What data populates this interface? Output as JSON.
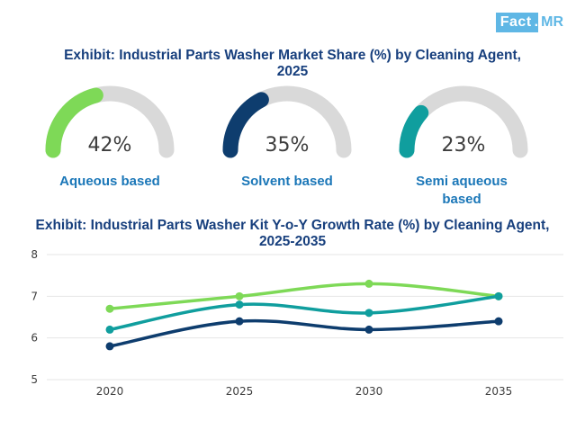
{
  "brand": {
    "name": "Fact",
    "dot": ".",
    "suffix": "MR"
  },
  "gauge_section": {
    "title_line1": "Exhibit: Industrial Parts Washer Market Share (%) by Cleaning Agent,",
    "title_line2": "2025",
    "gauges": [
      {
        "label_lines": [
          "Aqueous based"
        ],
        "value": 42,
        "value_text": "42%",
        "color": "#7ed957"
      },
      {
        "label_lines": [
          "Solvent based"
        ],
        "value": 35,
        "value_text": "35%",
        "color": "#0e3d6e"
      },
      {
        "label_lines": [
          "Semi aqueous",
          "based"
        ],
        "value": 23,
        "value_text": "23%",
        "color": "#109e9e"
      }
    ],
    "track_color": "#d9d9d9"
  },
  "line_section": {
    "title_line1": "Exhibit: Industrial Parts Washer Kit Y-o-Y Growth Rate (%) by Cleaning Agent,",
    "title_line2": "2025-2035"
  },
  "chart_data": {
    "type": "line",
    "title": "Exhibit: Industrial Parts Washer Kit Y-o-Y Growth Rate (%) by Cleaning Agent, 2025-2035",
    "x": [
      "2020",
      "2025",
      "2030",
      "2035"
    ],
    "ylim": [
      5,
      8
    ],
    "yticks": [
      "5",
      "6",
      "7",
      "8"
    ],
    "xlabel": "",
    "ylabel": "",
    "grid": true,
    "series": [
      {
        "name": "Aqueous based",
        "color": "#7ed957",
        "values": [
          6.7,
          7.0,
          7.3,
          7.0
        ]
      },
      {
        "name": "Semi aqueous based",
        "color": "#109e9e",
        "values": [
          6.2,
          6.8,
          6.6,
          7.0
        ]
      },
      {
        "name": "Solvent based",
        "color": "#0e3d6e",
        "values": [
          5.8,
          6.4,
          6.2,
          6.4
        ]
      }
    ]
  }
}
